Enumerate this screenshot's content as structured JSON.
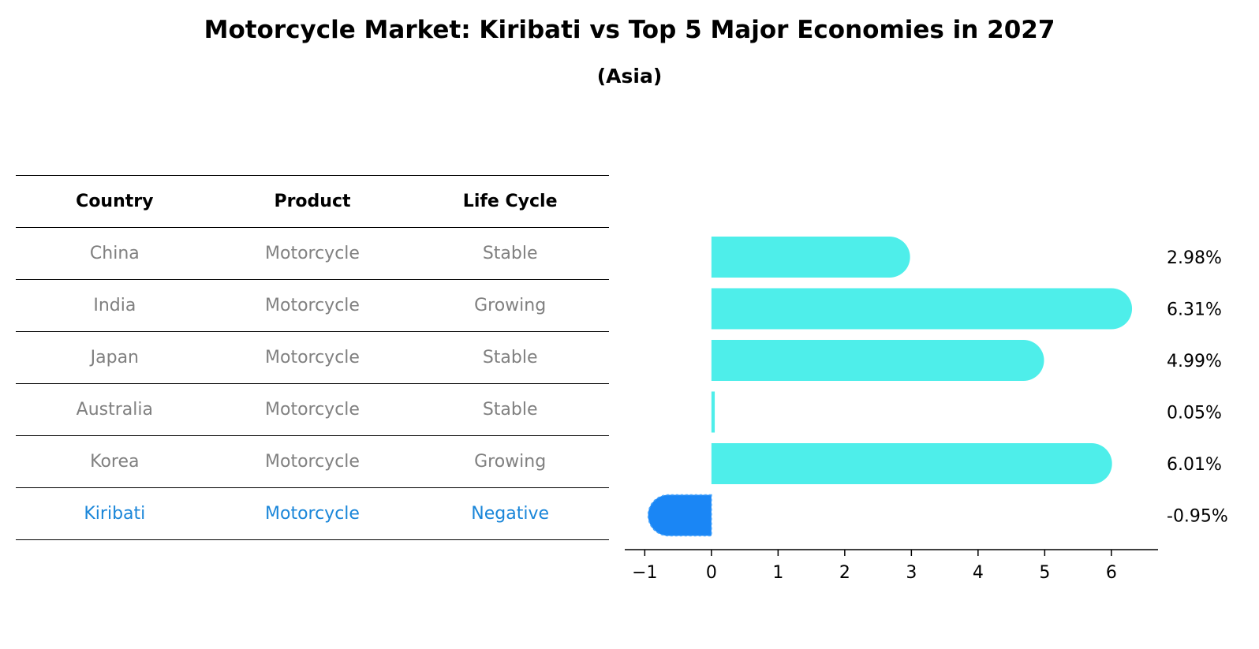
{
  "title": "Motorcycle Market: Kiribati vs Top 5 Major Economies in 2027",
  "subtitle": "(Asia)",
  "colors": {
    "bar_positive": "#4eeeea",
    "bar_negative": "#1a86f5",
    "table_text": "#808080",
    "table_highlight": "#1a86d9"
  },
  "table": {
    "headers": [
      "Country",
      "Product",
      "Life Cycle"
    ],
    "rows": [
      {
        "country": "China",
        "product": "Motorcycle",
        "life_cycle": "Stable"
      },
      {
        "country": "India",
        "product": "Motorcycle",
        "life_cycle": "Growing"
      },
      {
        "country": "Japan",
        "product": "Motorcycle",
        "life_cycle": "Stable"
      },
      {
        "country": "Australia",
        "product": "Motorcycle",
        "life_cycle": "Stable"
      },
      {
        "country": "Korea",
        "product": "Motorcycle",
        "life_cycle": "Growing"
      },
      {
        "country": "Kiribati",
        "product": "Motorcycle",
        "life_cycle": "Negative"
      }
    ]
  },
  "chart_data": {
    "type": "bar",
    "orientation": "horizontal",
    "categories": [
      "China",
      "India",
      "Japan",
      "Australia",
      "Korea",
      "Kiribati"
    ],
    "values": [
      2.98,
      6.31,
      4.99,
      0.05,
      6.01,
      -0.95
    ],
    "value_labels": [
      "2.98%",
      "6.31%",
      "4.99%",
      "0.05%",
      "6.01%",
      "-0.95%"
    ],
    "xlim": [
      -1.3,
      6.7
    ],
    "xticks": [
      -1,
      0,
      1,
      2,
      3,
      4,
      5,
      6
    ],
    "xtick_labels": [
      "−1",
      "0",
      "1",
      "2",
      "3",
      "4",
      "5",
      "6"
    ],
    "grid": false,
    "title": "",
    "xlabel": "",
    "ylabel": ""
  }
}
